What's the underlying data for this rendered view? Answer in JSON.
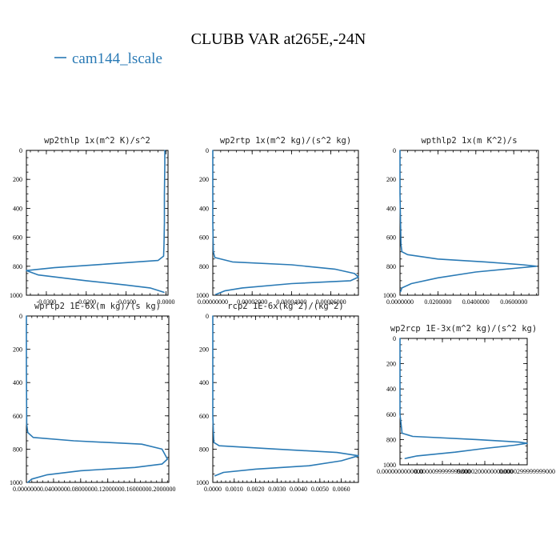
{
  "title": "CLUBB VAR at265E,-24N",
  "legend": {
    "label": "cam144_lscale",
    "color": "#2a7ab5"
  },
  "line_color": "#2a7ab5",
  "chart_data": [
    {
      "type": "line",
      "title": "wp2thlp  1x(m^2 K)/s^2",
      "xlim": [
        -0.035,
        0.0005
      ],
      "ylim": [
        1000,
        0
      ],
      "xticks": [
        -0.03,
        -0.02,
        -0.01,
        0.0
      ],
      "xtick_labels": [
        "-0.0300",
        "-0.0200",
        "-0.0100",
        "0.0000"
      ],
      "yticks": [
        0,
        200,
        400,
        600,
        800,
        1000
      ],
      "ytick_labels": [
        "0",
        "200",
        "400",
        "600",
        "800",
        "1000"
      ],
      "series": [
        {
          "x": [
            -0.0003,
            -0.0003,
            -0.0004,
            -0.0004,
            -0.0005,
            -0.0006,
            -0.002,
            -0.015,
            -0.028,
            -0.035,
            -0.032,
            -0.02,
            -0.01,
            -0.004,
            -0.0005
          ],
          "y": [
            0,
            100,
            300,
            500,
            650,
            730,
            760,
            785,
            810,
            830,
            860,
            900,
            930,
            950,
            980
          ]
        }
      ]
    },
    {
      "type": "line",
      "title": "wp2rtp  1x(m^2 kg)/(s^2 kg)",
      "xlim": [
        0,
        7.4e-05
      ],
      "ylim": [
        1000,
        0
      ],
      "xticks": [
        0,
        2e-05,
        4e-05,
        6e-05
      ],
      "xtick_labels": [
        "0.00000000",
        "0.00002000",
        "0.00004000",
        "0.00006000"
      ],
      "yticks": [
        0,
        200,
        400,
        600,
        800,
        1000
      ],
      "ytick_labels": [
        "0",
        "200",
        "400",
        "600",
        "800",
        "1000"
      ],
      "series": [
        {
          "x": [
            0,
            0,
            0,
            3e-07,
            1e-06,
            1e-05,
            4e-05,
            6.2e-05,
            7.2e-05,
            7.4e-05,
            7e-05,
            4e-05,
            1.5e-05,
            6e-06,
            1.5e-06
          ],
          "y": [
            0,
            200,
            500,
            700,
            740,
            770,
            790,
            820,
            850,
            875,
            900,
            920,
            950,
            970,
            995
          ]
        }
      ]
    },
    {
      "type": "line",
      "title": "wpthlp2  1x(m K^2)/s",
      "xlim": [
        0,
        0.073
      ],
      "ylim": [
        1000,
        0
      ],
      "xticks": [
        0,
        0.02,
        0.04,
        0.06
      ],
      "xtick_labels": [
        "0.0000000",
        "0.0200000",
        "0.0400000",
        "0.0600000"
      ],
      "yticks": [
        0,
        200,
        400,
        600,
        800,
        1000
      ],
      "ytick_labels": [
        "0",
        "200",
        "400",
        "600",
        "800",
        "1000"
      ],
      "series": [
        {
          "x": [
            0,
            0,
            0.0005,
            0.001,
            0.004,
            0.02,
            0.045,
            0.065,
            0.072,
            0.06,
            0.04,
            0.02,
            0.006,
            0.001,
            0.0003
          ],
          "y": [
            0,
            300,
            650,
            700,
            720,
            750,
            770,
            790,
            800,
            815,
            840,
            880,
            920,
            950,
            975
          ]
        }
      ]
    },
    {
      "type": "line",
      "title": "wprtp2  1E-6x(m kg)/(s kg)",
      "xlim": [
        0,
        0.21
      ],
      "ylim": [
        1000,
        0
      ],
      "xticks": [
        0,
        0.04,
        0.08,
        0.12,
        0.16,
        0.2
      ],
      "xtick_labels": [
        "0.0000000",
        "0.0400000",
        "0.0800000",
        "0.1200000",
        "0.1600000",
        "0.2000000"
      ],
      "yticks": [
        0,
        200,
        400,
        600,
        800,
        1000
      ],
      "ytick_labels": [
        "0",
        "200",
        "400",
        "600",
        "800",
        "1000"
      ],
      "series": [
        {
          "x": [
            0,
            0,
            0.0005,
            0.002,
            0.01,
            0.07,
            0.17,
            0.2,
            0.208,
            0.2,
            0.16,
            0.08,
            0.03,
            0.008,
            0.002
          ],
          "y": [
            0,
            300,
            650,
            700,
            730,
            750,
            770,
            800,
            860,
            890,
            910,
            930,
            955,
            980,
            1000
          ]
        }
      ]
    },
    {
      "type": "line",
      "title": "rcp2  1E-6x(kg^2)/(kg^2)",
      "xlim": [
        0,
        0.0068
      ],
      "ylim": [
        1000,
        0
      ],
      "xticks": [
        0,
        0.001,
        0.002,
        0.003,
        0.004,
        0.005,
        0.006
      ],
      "xtick_labels": [
        "0.0000",
        "0.0010",
        "0.0020",
        "0.0030",
        "0.0040",
        "0.0050",
        "0.0060"
      ],
      "yticks": [
        0,
        200,
        400,
        600,
        800,
        1000
      ],
      "ytick_labels": [
        "0",
        "200",
        "400",
        "600",
        "800",
        "1000"
      ],
      "series": [
        {
          "x": [
            0,
            0,
            5e-05,
            0.0003,
            0.003,
            0.0058,
            0.0068,
            0.006,
            0.0045,
            0.002,
            0.0005,
            0.0001
          ],
          "y": [
            0,
            600,
            760,
            780,
            800,
            820,
            840,
            870,
            900,
            920,
            940,
            960
          ]
        }
      ]
    },
    {
      "type": "line",
      "title": "wp2rcp  1E-3x(m^2 kg)/(s^2 kg)",
      "xlim": [
        0,
        3e-05
      ],
      "ylim": [
        1000,
        0
      ],
      "xticks": [
        0,
        1e-05,
        2e-05,
        3e-05
      ],
      "xtick_labels": [
        "0.0000000000000",
        "0.0000099999999800",
        "0.0000200000000000",
        "0.0000299999999000"
      ],
      "yticks": [
        0,
        200,
        400,
        600,
        800,
        1000
      ],
      "ytick_labels": [
        "0",
        "200",
        "400",
        "600",
        "800",
        "1000"
      ],
      "series": [
        {
          "x": [
            0,
            0,
            5e-07,
            3e-06,
            1.8e-05,
            2.8e-05,
            3e-05,
            2.7e-05,
            2e-05,
            1.3e-05,
            4e-06,
            1.2e-06
          ],
          "y": [
            0,
            600,
            750,
            775,
            800,
            820,
            830,
            845,
            870,
            900,
            930,
            950
          ]
        }
      ]
    }
  ]
}
